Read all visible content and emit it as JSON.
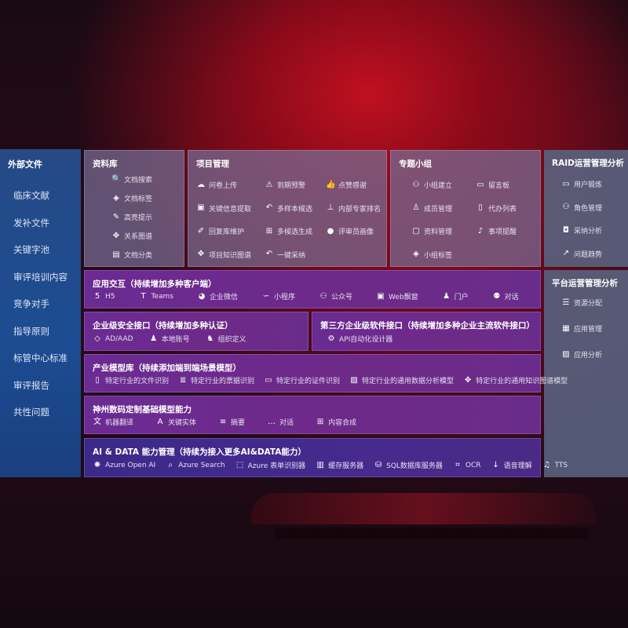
{
  "sidebar": {
    "title": "外部文件",
    "items": [
      "临床文献",
      "发补文件",
      "关键字池",
      "审评培训内容",
      "竞争对手",
      "指导原则",
      "标管中心标准",
      "审评报告",
      "共性问题"
    ]
  },
  "library": {
    "title": "资料库",
    "items": [
      {
        "icon": "doc-search-icon",
        "label": "文档搜索"
      },
      {
        "icon": "tag-icon",
        "label": "文档标签"
      },
      {
        "icon": "pen-icon",
        "label": "高亮提示"
      },
      {
        "icon": "graph-icon",
        "label": "关系图谱"
      },
      {
        "icon": "doc-stack-icon",
        "label": "文档分类"
      }
    ]
  },
  "project": {
    "title": "项目管理",
    "items": [
      {
        "icon": "cloud-upload-icon",
        "label": "问卷上传"
      },
      {
        "icon": "alarm-icon",
        "label": "到期预警"
      },
      {
        "icon": "thumbs-up-icon",
        "label": "点赞感谢"
      },
      {
        "icon": "window-icon",
        "label": "关键信息提取"
      },
      {
        "icon": "reply-icon",
        "label": "多样本候选"
      },
      {
        "icon": "rank-icon",
        "label": "内部专家排名"
      },
      {
        "icon": "edit-icon",
        "label": "回复库维护"
      },
      {
        "icon": "puzzle-icon",
        "label": "多候选生成"
      },
      {
        "icon": "user-icon",
        "label": "评审员画像"
      },
      {
        "icon": "graph-icon",
        "label": "项目知识图谱"
      },
      {
        "icon": "reply-icon",
        "label": "一键采纳"
      }
    ]
  },
  "group": {
    "title": "专题小组",
    "items": [
      {
        "icon": "group-icon",
        "label": "小组建立"
      },
      {
        "icon": "bbs-icon",
        "label": "留言板"
      },
      {
        "icon": "user-add-icon",
        "label": "成员管理"
      },
      {
        "icon": "clipboard-icon",
        "label": "代办列表"
      },
      {
        "icon": "folder-icon",
        "label": "资料管理"
      },
      {
        "icon": "bell-icon",
        "label": "事项提醒"
      },
      {
        "icon": "tag-icon",
        "label": "小组标签"
      }
    ]
  },
  "raid": {
    "title": "RAID运营管理分析",
    "items": [
      {
        "icon": "id-card-icon",
        "label": "用户锻炼"
      },
      {
        "icon": "group-icon",
        "label": "角色管理"
      },
      {
        "icon": "qa-icon",
        "label": "采纳分析"
      },
      {
        "icon": "trend-icon",
        "label": "问题趋势"
      }
    ]
  },
  "platform": {
    "title": "平台运营管理分析",
    "items": [
      {
        "icon": "list-icon",
        "label": "资源分配"
      },
      {
        "icon": "apps-icon",
        "label": "应用管理"
      },
      {
        "icon": "chart-icon",
        "label": "应用分析"
      }
    ]
  },
  "app": {
    "title": "应用交互（持续增加多种客户端）",
    "items": [
      {
        "icon": "html5-icon",
        "label": "H5"
      },
      {
        "icon": "teams-icon",
        "label": "Teams"
      },
      {
        "icon": "wecom-icon",
        "label": "企业微信"
      },
      {
        "icon": "miniprogram-icon",
        "label": "小程序"
      },
      {
        "icon": "group-icon",
        "label": "公众号"
      },
      {
        "icon": "window-icon",
        "label": "Web飘窗"
      },
      {
        "icon": "portal-icon",
        "label": "门户"
      },
      {
        "icon": "chat-users-icon",
        "label": "对话"
      }
    ]
  },
  "security": {
    "title": "企业级安全接口（持续增加多种认证）",
    "items": [
      {
        "icon": "ad-icon",
        "label": "AD/AAD"
      },
      {
        "icon": "account-icon",
        "label": "本地账号"
      },
      {
        "icon": "org-icon",
        "label": "组织定义"
      }
    ]
  },
  "thirdparty": {
    "title": "第三方企业级软件接口（持续增加多种企业主流软件接口）",
    "items": [
      {
        "icon": "gear-icon",
        "label": "API自动化设计器"
      }
    ]
  },
  "industry": {
    "title": "产业模型库（持续添加端到端场景模型）",
    "items": [
      {
        "icon": "file-icon",
        "label": "特定行业的文件识别"
      },
      {
        "icon": "receipt-icon",
        "label": "特定行业的票据识别"
      },
      {
        "icon": "id-card-icon",
        "label": "特定行业的证件识别"
      },
      {
        "icon": "image-chart-icon",
        "label": "特定行业的通用数据分析模型"
      },
      {
        "icon": "graph-icon",
        "label": "特定行业的通用知识图谱模型"
      }
    ]
  },
  "base": {
    "title": "神州数码定制基础模型能力",
    "items": [
      {
        "icon": "translate-icon",
        "label": "机器翻译"
      },
      {
        "icon": "entity-icon",
        "label": "关键实体"
      },
      {
        "icon": "summary-icon",
        "label": "摘要"
      },
      {
        "icon": "chat-icon",
        "label": "对话"
      },
      {
        "icon": "puzzle-icon",
        "label": "内容合成"
      }
    ]
  },
  "aidata": {
    "title": "AI & DATA 能力管理（持续为接入更多AI&DATA能力）",
    "items": [
      {
        "icon": "openai-icon",
        "label": "Azure Open AI"
      },
      {
        "icon": "search-doc-icon",
        "label": "Azure Search"
      },
      {
        "icon": "form-icon",
        "label": "Azure 表单识别器"
      },
      {
        "icon": "cache-icon",
        "label": "缓存服务器"
      },
      {
        "icon": "database-icon",
        "label": "SQL数据库服务器"
      },
      {
        "icon": "ocr-icon",
        "label": "OCR"
      },
      {
        "icon": "speech-icon",
        "label": "语音理解"
      },
      {
        "icon": "tts-icon",
        "label": "TTS"
      }
    ]
  }
}
